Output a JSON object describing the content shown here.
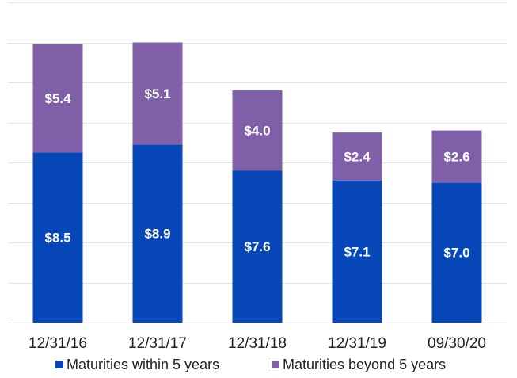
{
  "chart_data": {
    "type": "bar",
    "stacked": true,
    "categories": [
      "12/31/16",
      "12/31/17",
      "12/31/18",
      "12/31/19",
      "09/30/20"
    ],
    "series": [
      {
        "name": "Maturities within 5 years",
        "values": [
          8.5,
          8.9,
          7.6,
          7.1,
          7.0
        ],
        "labels": [
          "$8.5",
          "$8.9",
          "$7.6",
          "$7.1",
          "$7.0"
        ],
        "color": "#0747b8"
      },
      {
        "name": "Maturities beyond 5 years",
        "values": [
          5.4,
          5.1,
          4.0,
          2.4,
          2.6
        ],
        "labels": [
          "$5.4",
          "$5.1",
          "$4.0",
          "$2.4",
          "$2.6"
        ],
        "color": "#7f60a8"
      }
    ],
    "ylim": [
      0,
      16
    ],
    "grid": true,
    "legend_position": "bottom",
    "title": "",
    "xlabel": "",
    "ylabel": ""
  }
}
